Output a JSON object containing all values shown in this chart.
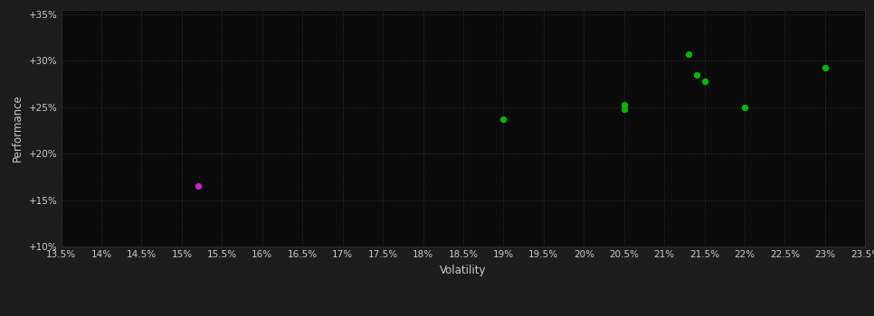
{
  "background_color": "#1c1c1c",
  "plot_bg_color": "#0a0a0a",
  "grid_color": "#3a3a3a",
  "xlabel": "Volatility",
  "ylabel": "Performance",
  "xlim": [
    0.135,
    0.235
  ],
  "ylim": [
    0.1,
    0.355
  ],
  "xticks": [
    0.135,
    0.14,
    0.145,
    0.15,
    0.155,
    0.16,
    0.165,
    0.17,
    0.175,
    0.18,
    0.185,
    0.19,
    0.195,
    0.2,
    0.205,
    0.21,
    0.215,
    0.22,
    0.225,
    0.23,
    0.235
  ],
  "yticks": [
    0.1,
    0.15,
    0.2,
    0.25,
    0.3,
    0.35
  ],
  "ytick_labels": [
    "+10%",
    "+15%",
    "+20%",
    "+25%",
    "+30%",
    "+35%"
  ],
  "xtick_labels": [
    "13.5%",
    "14%",
    "14.5%",
    "15%",
    "15.5%",
    "16%",
    "16.5%",
    "17%",
    "17.5%",
    "18%",
    "18.5%",
    "19%",
    "19.5%",
    "20%",
    "20.5%",
    "21%",
    "21.5%",
    "22%",
    "22.5%",
    "23%",
    "23.5%"
  ],
  "green_points": [
    [
      0.19,
      0.237
    ],
    [
      0.205,
      0.253
    ],
    [
      0.205,
      0.248
    ],
    [
      0.213,
      0.307
    ],
    [
      0.214,
      0.285
    ],
    [
      0.215,
      0.278
    ],
    [
      0.22,
      0.25
    ],
    [
      0.23,
      0.292
    ]
  ],
  "magenta_points": [
    [
      0.152,
      0.165
    ]
  ],
  "green_color": "#00bb00",
  "magenta_color": "#cc22cc",
  "marker_size": 18,
  "tick_color": "#cccccc",
  "label_color": "#cccccc",
  "tick_fontsize": 7.5,
  "label_fontsize": 8.5
}
